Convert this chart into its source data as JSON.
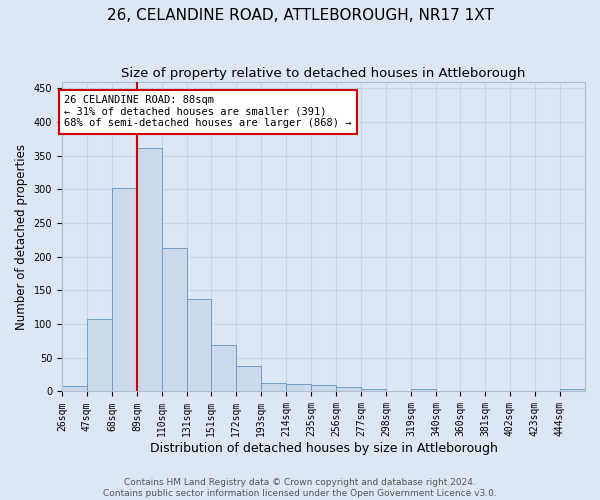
{
  "title": "26, CELANDINE ROAD, ATTLEBOROUGH, NR17 1XT",
  "subtitle": "Size of property relative to detached houses in Attleborough",
  "xlabel": "Distribution of detached houses by size in Attleborough",
  "ylabel": "Number of detached properties",
  "bins": [
    26,
    47,
    68,
    89,
    110,
    131,
    151,
    172,
    193,
    214,
    235,
    256,
    277,
    298,
    319,
    340,
    360,
    381,
    402,
    423,
    444,
    465
  ],
  "counts": [
    8,
    108,
    302,
    362,
    213,
    138,
    69,
    38,
    12,
    11,
    9,
    6,
    4,
    0,
    4,
    0,
    0,
    0,
    0,
    0,
    4
  ],
  "bar_color": "#ccd9ec",
  "bar_edge_color": "#6e9ec8",
  "grid_color": "#c8d4e8",
  "background_color": "#dde6f3",
  "axes_background": "#dde6f3",
  "red_line_x": 89,
  "annotation_text": "26 CELANDINE ROAD: 88sqm\n← 31% of detached houses are smaller (391)\n68% of semi-detached houses are larger (868) →",
  "annotation_box_color": "#ffffff",
  "annotation_border_color": "#cc0000",
  "ylim": [
    0,
    460
  ],
  "yticks": [
    0,
    50,
    100,
    150,
    200,
    250,
    300,
    350,
    400,
    450
  ],
  "footer_text": "Contains HM Land Registry data © Crown copyright and database right 2024.\nContains public sector information licensed under the Open Government Licence v3.0.",
  "title_fontsize": 11,
  "subtitle_fontsize": 9.5,
  "xlabel_fontsize": 9,
  "ylabel_fontsize": 8.5,
  "tick_fontsize": 7,
  "footer_fontsize": 6.5,
  "annotation_fontsize": 7.5
}
